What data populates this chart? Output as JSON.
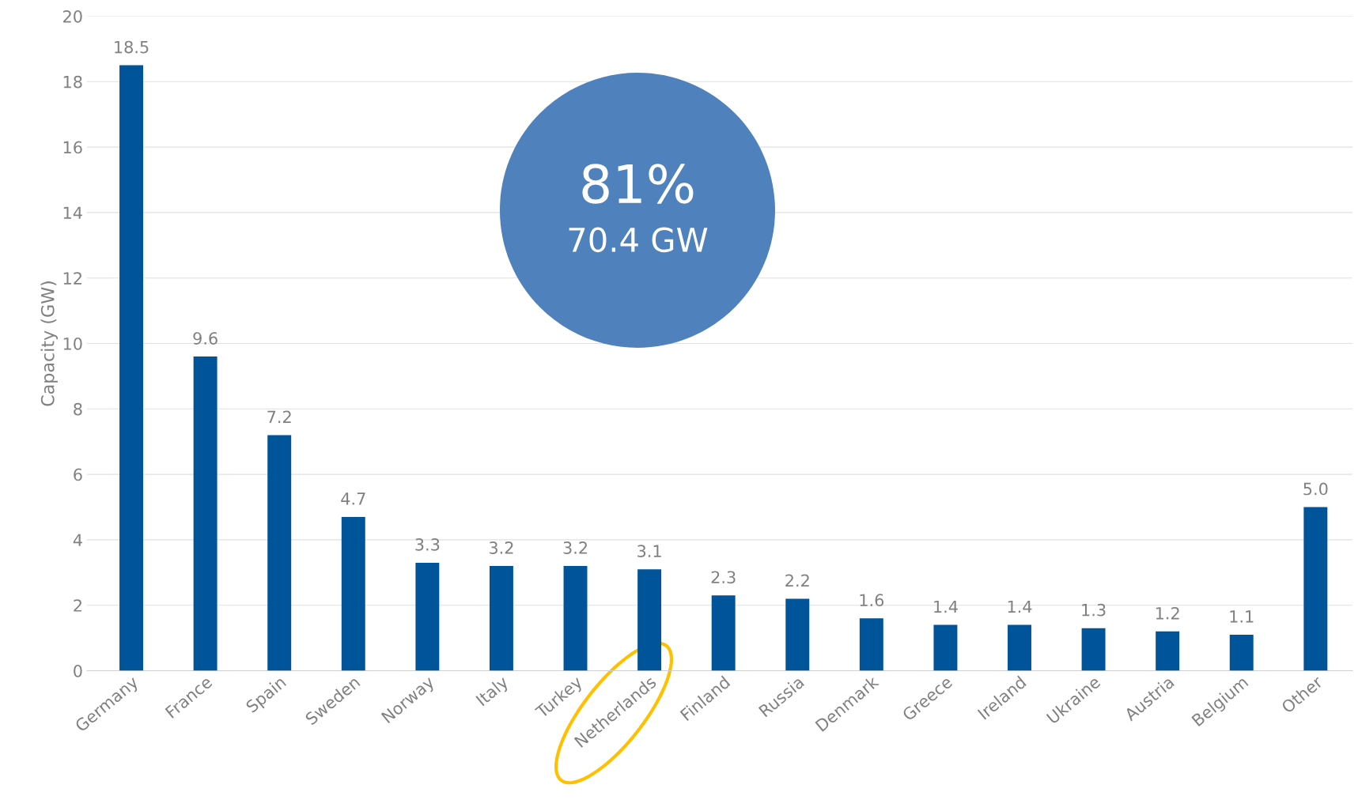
{
  "chart_data": {
    "type": "bar",
    "ylabel": "Capacity (GW)",
    "categories": [
      "Germany",
      "France",
      "Spain",
      "Sweden",
      "Norway",
      "Italy",
      "Turkey",
      "Netherlands",
      "Finland",
      "Russia",
      "Denmark",
      "Greece",
      "Ireland",
      "Ukraine",
      "Austria",
      "Belgium",
      "Other"
    ],
    "values": [
      18.5,
      9.6,
      7.2,
      4.7,
      3.3,
      3.2,
      3.2,
      3.1,
      2.3,
      2.2,
      1.6,
      1.4,
      1.4,
      1.3,
      1.2,
      1.1,
      5.0
    ],
    "value_labels": [
      "18.5",
      "9.6",
      "7.2",
      "4.7",
      "3.3",
      "3.2",
      "3.2",
      "3.1",
      "2.3",
      "2.2",
      "1.6",
      "1.4",
      "1.4",
      "1.3",
      "1.2",
      "1.1",
      "5.0"
    ],
    "color": "#00559a",
    "ylim": [
      0,
      20
    ],
    "yticks": [
      0,
      2,
      4,
      6,
      8,
      10,
      12,
      14,
      16,
      18,
      20
    ],
    "grid": "y",
    "annotations": [
      "81%",
      "70.4 GW"
    ]
  }
}
